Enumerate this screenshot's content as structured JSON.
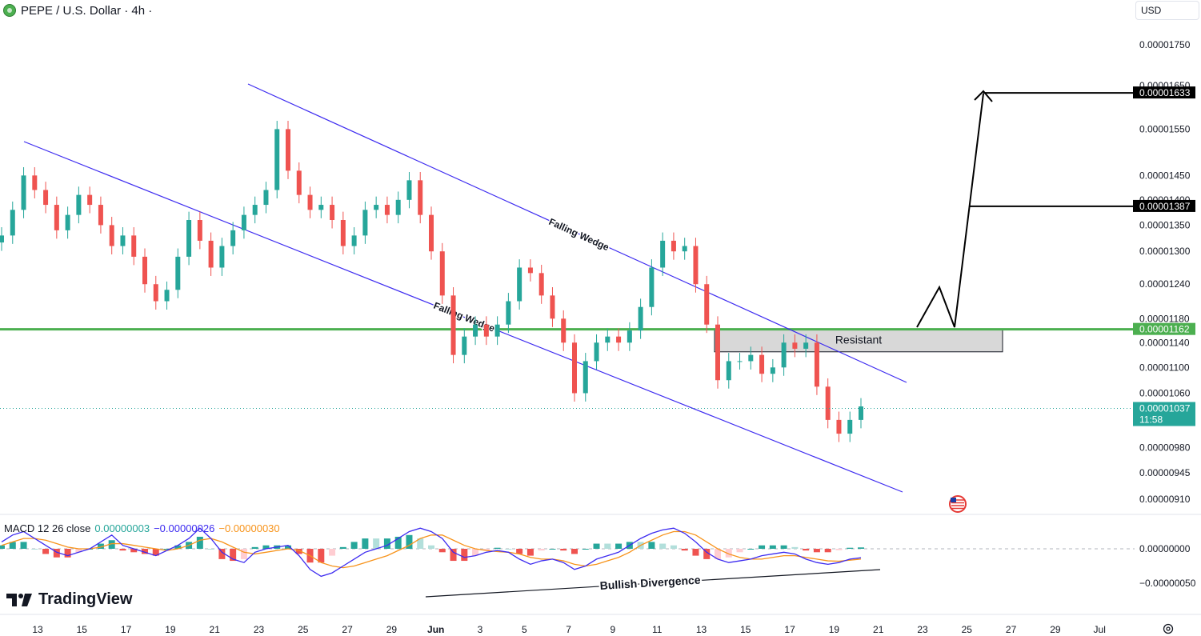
{
  "header": {
    "title": "PEPE / U.S. Dollar · 4h ·",
    "currency": "USD"
  },
  "colors": {
    "up": "#26a69a",
    "down": "#ef5350",
    "wedge_line": "#3d2bf0",
    "resistance_line": "#4caf50",
    "macd_line": "#3d2bf0",
    "signal_line": "#f7931a",
    "hist_up_strong": "#26a69a",
    "hist_up_weak": "#b2dfdb",
    "hist_down_strong": "#ef5350",
    "hist_down_weak": "#ffcdd2",
    "resistant_zone": "#d8d8d8",
    "price_tag_dark": "#000000",
    "price_tag_green": "#4caf50",
    "price_tag_teal": "#26a69a"
  },
  "chart_data": {
    "type": "candlestick",
    "symbol": "PEPE / U.S. Dollar",
    "timeframe": "4h",
    "price_axis": {
      "ticks": [
        "0.00001750",
        "0.00001650",
        "0.00001550",
        "0.00001450",
        "0.00001400",
        "0.00001350",
        "0.00001300",
        "0.00001240",
        "0.00001180",
        "0.00001140",
        "0.00001100",
        "0.00001060",
        "0.00000980",
        "0.00000945",
        "0.00000910"
      ],
      "scale": "log"
    },
    "time_axis": {
      "ticks": [
        "13",
        "15",
        "17",
        "19",
        "21",
        "23",
        "25",
        "27",
        "29",
        "Jun",
        "3",
        "5",
        "7",
        "9",
        "11",
        "13",
        "15",
        "17",
        "19",
        "21",
        "23",
        "25",
        "27",
        "29",
        "Jul"
      ]
    },
    "price_labels": {
      "target_high": "0.00001633",
      "target_mid": "0.00001387",
      "resistance": "0.00001162",
      "last_price": "0.00001037",
      "countdown": "11:58"
    },
    "resistance_level": 1.162e-05,
    "resistance_zone": {
      "from": 1.125e-05,
      "to": 1.162e-05,
      "label": "Resistant"
    },
    "annotations": [
      "Falling Wedge",
      "Falling Wedge",
      "Bullish Divergence"
    ],
    "closes": [
      1.33e-05,
      1.38e-05,
      1.45e-05,
      1.42e-05,
      1.39e-05,
      1.34e-05,
      1.37e-05,
      1.41e-05,
      1.39e-05,
      1.35e-05,
      1.31e-05,
      1.33e-05,
      1.29e-05,
      1.24e-05,
      1.21e-05,
      1.23e-05,
      1.29e-05,
      1.36e-05,
      1.32e-05,
      1.27e-05,
      1.31e-05,
      1.34e-05,
      1.37e-05,
      1.39e-05,
      1.42e-05,
      1.55e-05,
      1.46e-05,
      1.41e-05,
      1.38e-05,
      1.39e-05,
      1.36e-05,
      1.31e-05,
      1.33e-05,
      1.38e-05,
      1.39e-05,
      1.37e-05,
      1.4e-05,
      1.44e-05,
      1.37e-05,
      1.3e-05,
      1.22e-05,
      1.12e-05,
      1.15e-05,
      1.17e-05,
      1.15e-05,
      1.17e-05,
      1.21e-05,
      1.27e-05,
      1.26e-05,
      1.22e-05,
      1.18e-05,
      1.14e-05,
      1.06e-05,
      1.11e-05,
      1.14e-05,
      1.15e-05,
      1.14e-05,
      1.16e-05,
      1.2e-05,
      1.27e-05,
      1.32e-05,
      1.3e-05,
      1.31e-05,
      1.24e-05,
      1.17e-05,
      1.08e-05,
      1.11e-05,
      1.11e-05,
      1.12e-05,
      1.09e-05,
      1.1e-05,
      1.14e-05,
      1.13e-05,
      1.14e-05,
      1.07e-05,
      1.02e-05,
      1e-05,
      1.02e-05,
      1.04e-05
    ],
    "macd_panel": {
      "legend_label": "MACD 12 26 close",
      "values": [
        "0.00000003",
        "−0.00000026",
        "−0.00000030"
      ],
      "ticks": [
        "0.00000000",
        "−0.00000050"
      ],
      "macd": [
        0.2,
        0.4,
        0.5,
        0.3,
        0.1,
        -0.1,
        -0.2,
        -0.1,
        0.0,
        0.2,
        0.4,
        0.1,
        0.0,
        -0.1,
        -0.2,
        -0.05,
        0.1,
        0.3,
        0.6,
        0.3,
        -0.1,
        -0.3,
        -0.4,
        -0.1,
        0.0,
        0.05,
        0.1,
        -0.2,
        -0.6,
        -0.8,
        -0.7,
        -0.5,
        -0.3,
        -0.1,
        0.0,
        0.1,
        0.3,
        0.5,
        0.6,
        0.5,
        0.3,
        -0.1,
        -0.25,
        -0.2,
        -0.1,
        -0.05,
        -0.1,
        -0.3,
        -0.45,
        -0.35,
        -0.3,
        -0.4,
        -0.6,
        -0.5,
        -0.3,
        -0.2,
        -0.1,
        0.1,
        0.3,
        0.45,
        0.55,
        0.6,
        0.45,
        0.2,
        -0.1,
        -0.3,
        -0.4,
        -0.35,
        -0.3,
        -0.2,
        -0.15,
        -0.1,
        -0.15,
        -0.3,
        -0.4,
        -0.45,
        -0.4,
        -0.3,
        -0.26
      ],
      "signal": [
        0.1,
        0.2,
        0.3,
        0.3,
        0.25,
        0.15,
        0.05,
        0.0,
        0.0,
        0.05,
        0.15,
        0.15,
        0.1,
        0.05,
        0.0,
        -0.05,
        0.0,
        0.1,
        0.25,
        0.3,
        0.2,
        0.05,
        -0.1,
        -0.15,
        -0.1,
        -0.05,
        0.0,
        -0.05,
        -0.2,
        -0.4,
        -0.5,
        -0.55,
        -0.5,
        -0.4,
        -0.3,
        -0.2,
        -0.05,
        0.1,
        0.3,
        0.4,
        0.4,
        0.25,
        0.1,
        0.0,
        -0.05,
        -0.08,
        -0.1,
        -0.15,
        -0.25,
        -0.3,
        -0.3,
        -0.35,
        -0.45,
        -0.5,
        -0.45,
        -0.35,
        -0.25,
        -0.1,
        0.1,
        0.25,
        0.4,
        0.5,
        0.5,
        0.4,
        0.2,
        0.0,
        -0.15,
        -0.25,
        -0.3,
        -0.3,
        -0.25,
        -0.2,
        -0.2,
        -0.25,
        -0.3,
        -0.35,
        -0.36,
        -0.33,
        -0.3
      ]
    }
  }
}
